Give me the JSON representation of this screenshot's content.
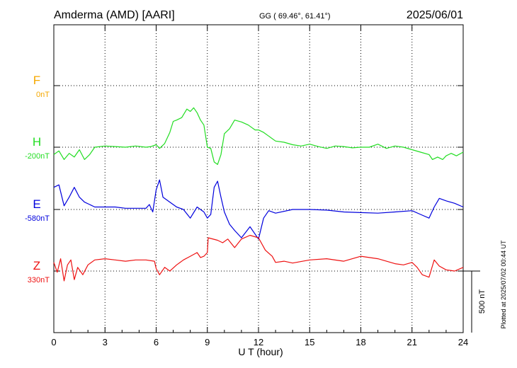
{
  "header": {
    "station": "Amderma (AMD)  [AARI]",
    "coords": "GG ( 69.46°,  61.41°)",
    "date": "2025/06/01"
  },
  "plotted_note": "Plotted at 2025/07/02 00:44 UT",
  "chart_data": {
    "type": "line",
    "xlabel": "U T (hour)",
    "xlim": [
      0,
      24
    ],
    "xticks": [
      0,
      3,
      6,
      9,
      12,
      15,
      18,
      21,
      24
    ],
    "tick_labels": [
      "0",
      "3",
      "6",
      "9",
      "12",
      "15",
      "18",
      "21",
      "24"
    ],
    "scale_bar": {
      "label": "500 nT",
      "value": 500
    },
    "series": [
      {
        "name": "F",
        "baseline_label": "0nT",
        "color": "#f5a800",
        "baseline_nT": 0,
        "x": [],
        "y": []
      },
      {
        "name": "H",
        "baseline_label": "-200nT",
        "color": "#22dd22",
        "baseline_nT": -200,
        "x": [
          0,
          0.3,
          0.6,
          0.9,
          1.2,
          1.5,
          1.8,
          2.1,
          2.4,
          3,
          3.6,
          4.2,
          4.8,
          5.4,
          5.7,
          6,
          6.2,
          6.5,
          6.8,
          7,
          7.2,
          7.5,
          7.8,
          8,
          8.2,
          8.4,
          8.6,
          8.8,
          9,
          9.2,
          9.4,
          9.6,
          9.8,
          10,
          10.3,
          10.6,
          11,
          11.4,
          11.8,
          12,
          12.3,
          12.6,
          13,
          13.5,
          14,
          14.5,
          15,
          15.5,
          16,
          16.5,
          17,
          17.5,
          18,
          18.5,
          19,
          19.5,
          20,
          20.5,
          21,
          21.5,
          22,
          22.2,
          22.5,
          22.8,
          23,
          23.3,
          23.6,
          24
        ],
        "y": [
          -260,
          -230,
          -300,
          -250,
          -280,
          -220,
          -300,
          -260,
          -200,
          -190,
          -195,
          -200,
          -190,
          -200,
          -195,
          -180,
          -210,
          -170,
          -80,
          10,
          20,
          40,
          110,
          90,
          120,
          80,
          20,
          -20,
          -200,
          -210,
          -320,
          -340,
          -260,
          -90,
          -50,
          20,
          5,
          -20,
          -60,
          -60,
          -80,
          -110,
          -150,
          -160,
          -180,
          -190,
          -175,
          -195,
          -210,
          -190,
          -195,
          -205,
          -200,
          -200,
          -175,
          -210,
          -190,
          -200,
          -220,
          -240,
          -260,
          -300,
          -280,
          -300,
          -270,
          -250,
          -270,
          -240
        ]
      },
      {
        "name": "E",
        "baseline_label": "-580nT",
        "color": "#0000dd",
        "baseline_nT": -580,
        "x": [
          0,
          0.3,
          0.6,
          0.9,
          1.2,
          1.5,
          1.8,
          2.1,
          2.4,
          3,
          3.6,
          4.2,
          4.8,
          5.4,
          5.6,
          5.8,
          6,
          6.2,
          6.4,
          6.8,
          7.2,
          7.6,
          8,
          8.4,
          8.8,
          9,
          9.2,
          9.4,
          9.6,
          9.8,
          10,
          10.3,
          10.6,
          11,
          11.5,
          12,
          12.3,
          12.6,
          13,
          14,
          15,
          16,
          17,
          18,
          19,
          20,
          21,
          21.5,
          22,
          22.3,
          22.6,
          23,
          23.5,
          24
        ],
        "y": [
          -400,
          -380,
          -550,
          -480,
          -400,
          -480,
          -520,
          -540,
          -560,
          -560,
          -560,
          -570,
          -570,
          -570,
          -540,
          -600,
          -420,
          -340,
          -480,
          -520,
          -560,
          -580,
          -650,
          -560,
          -600,
          -650,
          -620,
          -400,
          -350,
          -480,
          -600,
          -700,
          -750,
          -810,
          -720,
          -820,
          -650,
          -590,
          -610,
          -580,
          -580,
          -585,
          -600,
          -605,
          -610,
          -600,
          -590,
          -620,
          -650,
          -560,
          -490,
          -510,
          -530,
          -560
        ]
      },
      {
        "name": "Z",
        "baseline_label": "330nT",
        "color": "#ee1111",
        "baseline_nT": 330,
        "x": [
          0,
          0.2,
          0.4,
          0.6,
          0.8,
          1,
          1.2,
          1.4,
          1.7,
          2,
          2.4,
          3,
          3.6,
          4.2,
          4.8,
          5.4,
          5.9,
          6,
          6.2,
          6.5,
          6.8,
          7.2,
          7.6,
          8,
          8.4,
          8.6,
          8.8,
          9,
          9.05,
          9.6,
          9.9,
          10.2,
          10.6,
          11,
          11.5,
          12,
          12.4,
          12.8,
          13,
          13.5,
          14,
          15,
          16,
          17,
          18,
          19,
          20,
          20.5,
          21,
          21.3,
          21.6,
          22,
          22.3,
          22.6,
          23,
          23.5,
          24
        ],
        "y": [
          400,
          320,
          430,
          250,
          380,
          420,
          260,
          360,
          300,
          380,
          420,
          430,
          420,
          410,
          420,
          420,
          410,
          350,
          300,
          360,
          330,
          380,
          420,
          450,
          480,
          440,
          450,
          480,
          600,
          580,
          560,
          590,
          520,
          590,
          620,
          600,
          500,
          450,
          400,
          410,
          395,
          420,
          430,
          410,
          450,
          430,
          390,
          380,
          400,
          360,
          300,
          280,
          420,
          370,
          340,
          330,
          360
        ]
      }
    ]
  }
}
